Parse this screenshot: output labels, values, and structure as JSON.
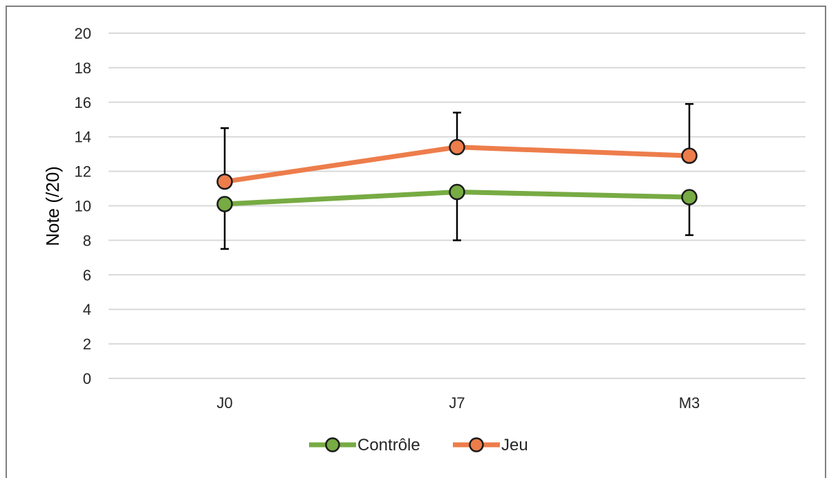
{
  "chart_data": {
    "type": "line",
    "categories": [
      "J0",
      "J7",
      "M3"
    ],
    "ylabel": "Note (/20)",
    "xlabel": "",
    "ylim": [
      0,
      20
    ],
    "yticks": [
      0,
      2,
      4,
      6,
      8,
      10,
      12,
      14,
      16,
      18,
      20
    ],
    "grid": true,
    "legend": "bottom",
    "series": [
      {
        "name": "Contrôle",
        "color": "#77ab43",
        "values": [
          10.1,
          10.8,
          10.5
        ],
        "error_low": [
          7.5,
          8.0,
          8.3
        ],
        "error_high": null
      },
      {
        "name": "Jeu",
        "color": "#ed7d4b",
        "values": [
          11.4,
          13.4,
          12.9
        ],
        "error_low": null,
        "error_high": [
          14.5,
          15.4,
          15.9
        ]
      }
    ]
  }
}
